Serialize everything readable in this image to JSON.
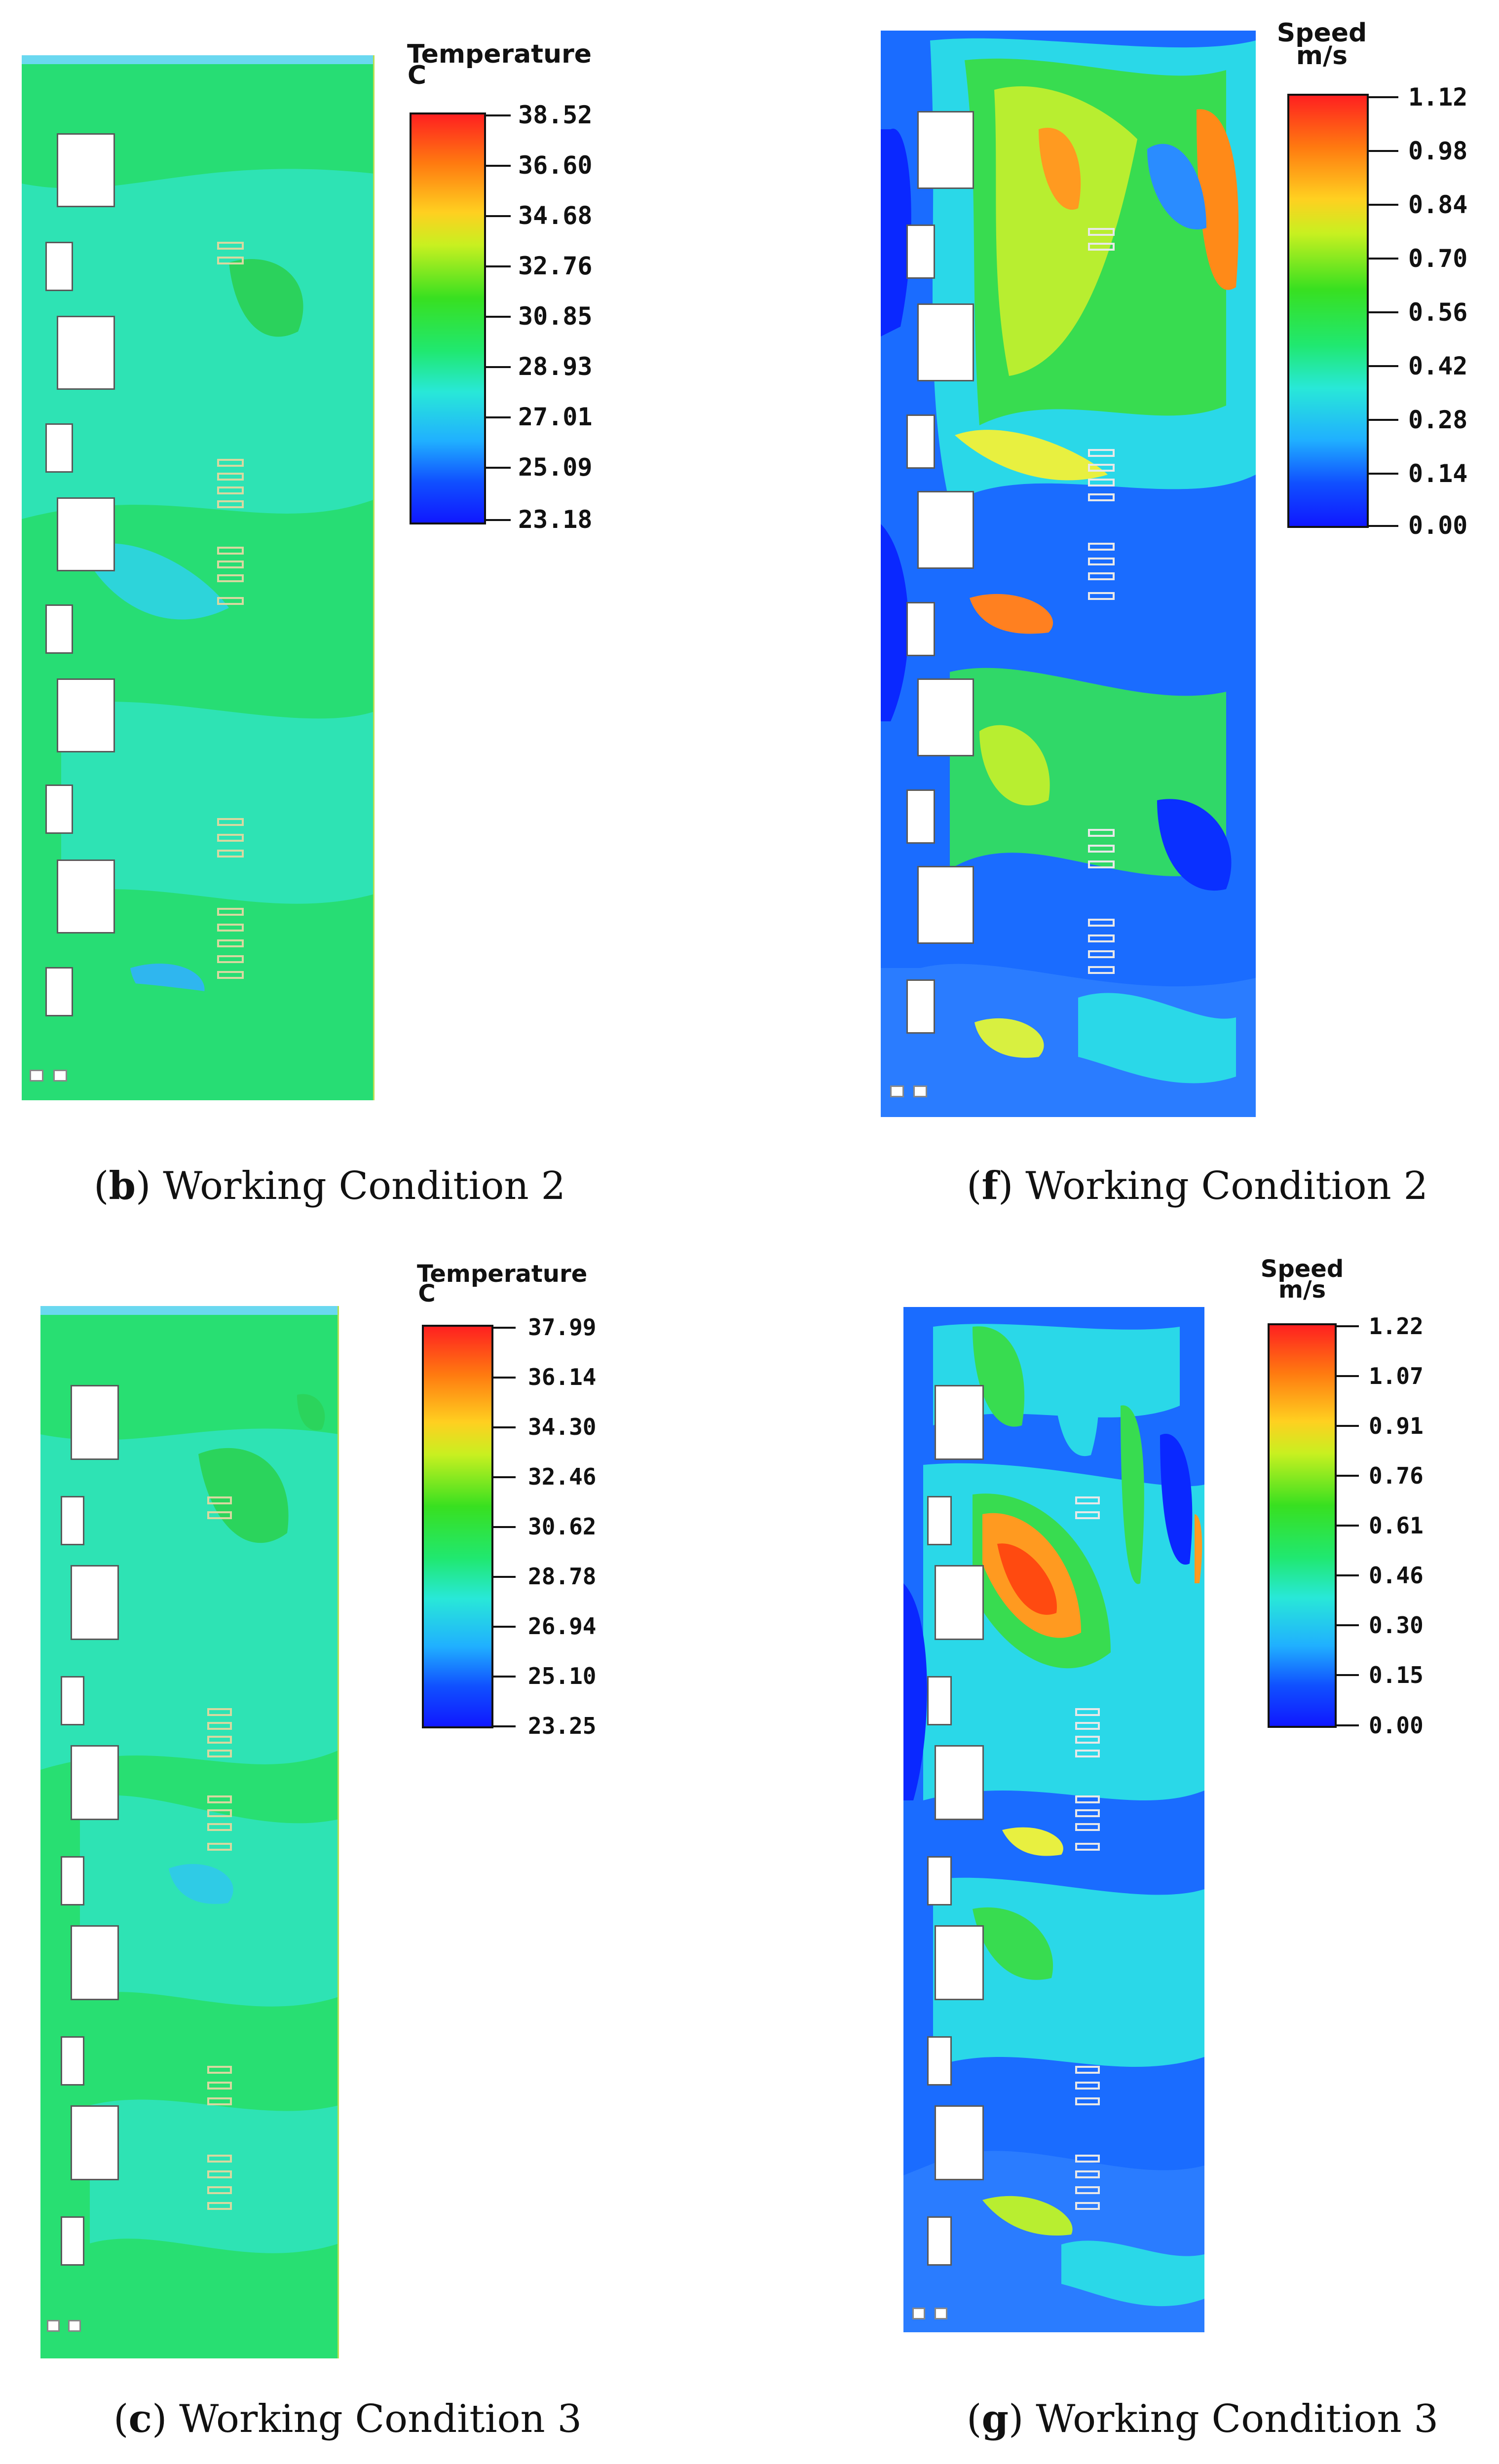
{
  "panels": [
    {
      "id": "b",
      "kind": "temperature",
      "caption_letter": "b",
      "caption_text": "Working Condition 2",
      "legend_title_line1": "Temperature",
      "legend_title_line2": "C",
      "legend_ticks": [
        "38.52",
        "36.60",
        "34.68",
        "32.76",
        "30.85",
        "28.93",
        "27.01",
        "25.09",
        "23.18"
      ]
    },
    {
      "id": "f",
      "kind": "speed",
      "caption_letter": "f",
      "caption_text": "Working Condition 2",
      "legend_title_line1": "Speed",
      "legend_title_line2": "m/s",
      "legend_ticks": [
        "1.12",
        "0.98",
        "0.84",
        "0.70",
        "0.56",
        "0.42",
        "0.28",
        "0.14",
        "0.00"
      ]
    },
    {
      "id": "c",
      "kind": "temperature",
      "caption_letter": "c",
      "caption_text": "Working Condition 3",
      "legend_title_line1": "Temperature",
      "legend_title_line2": "C",
      "legend_ticks": [
        "37.99",
        "36.14",
        "34.30",
        "32.46",
        "30.62",
        "28.78",
        "26.94",
        "25.10",
        "23.25"
      ]
    },
    {
      "id": "g",
      "kind": "speed",
      "caption_letter": "g",
      "caption_text": "Working Condition 3",
      "legend_title_line1": "Speed",
      "legend_title_line2": "m/s",
      "legend_ticks": [
        "1.22",
        "1.07",
        "0.91",
        "0.76",
        "0.61",
        "0.46",
        "0.30",
        "0.15",
        "0.00"
      ]
    }
  ],
  "colors": {
    "temp_base": "#22e28a",
    "temp_green": "#27d65a",
    "temp_cyan": "#2ee8c6",
    "speed_blue": "#1a5cff",
    "speed_deep": "#0a20ff",
    "speed_cyan": "#22d8e8",
    "speed_green": "#3ee05a",
    "speed_yellow": "#d8f030",
    "speed_orange": "#ff9a10",
    "speed_red": "#ff3a08"
  }
}
